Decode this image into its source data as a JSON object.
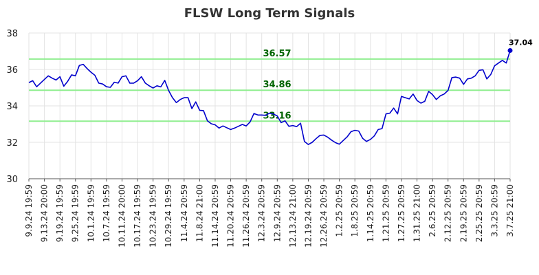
{
  "chart_data": {
    "type": "line",
    "title": "FLSW Long Term Signals",
    "ylim": [
      30,
      38
    ],
    "yticks": [
      30,
      32,
      34,
      36,
      38
    ],
    "grid": true,
    "line_color": "#0000cc",
    "level_color": "#90ee90",
    "level_label_color": "#006400",
    "x_tick_labels": [
      "9.9.24 19:59",
      "9.13.24 20:00",
      "9.19.24 19:59",
      "9.25.24 19:59",
      "10.1.24 19:59",
      "10.7.24 19:59",
      "10.11.24 20:00",
      "10.17.24 19:59",
      "10.23.24 19:59",
      "10.29.24 19:59",
      "11.4.24 20:59",
      "11.8.24 21:00",
      "11.14.24 20:59",
      "11.20.24 20:59",
      "11.26.24 20:59",
      "12.3.24 20:59",
      "12.9.24 20:59",
      "12.13.24 21:00",
      "12.19.24 20:59",
      "12.26.24 20:59",
      "1.2.25 20:59",
      "1.8.25 20:59",
      "1.14.25 20:59",
      "1.21.25 20:59",
      "1.27.25 20:59",
      "1.31.25 21:00",
      "2.6.25 20:59",
      "2.12.25 20:59",
      "2.19.25 20:59",
      "2.25.25 20:59",
      "3.3.25 20:59",
      "3.7.25 21:00"
    ],
    "levels": [
      {
        "value": 36.57,
        "label": "36.57"
      },
      {
        "value": 34.86,
        "label": "34.86"
      },
      {
        "value": 33.16,
        "label": "33.16"
      }
    ],
    "last_value_label": "37.04",
    "series": [
      {
        "values": [
          35.28,
          35.38,
          35.05,
          35.25,
          35.45,
          35.65,
          35.52,
          35.42,
          35.6,
          35.08,
          35.35,
          35.7,
          35.65,
          36.22,
          36.28,
          36.05,
          35.85,
          35.68,
          35.25,
          35.2,
          35.05,
          35.02,
          35.3,
          35.25,
          35.6,
          35.65,
          35.25,
          35.25,
          35.38,
          35.6,
          35.25,
          35.1,
          34.98,
          35.1,
          35.04,
          35.4,
          34.85,
          34.45,
          34.18,
          34.35,
          34.45,
          34.45,
          33.85,
          34.22,
          33.76,
          33.74,
          33.18,
          33.02,
          32.96,
          32.78,
          32.9,
          32.8,
          32.7,
          32.78,
          32.88,
          32.98,
          32.9,
          33.12,
          33.58,
          33.5,
          33.5,
          33.48,
          33.6,
          33.55,
          33.45,
          33.08,
          33.18,
          32.88,
          32.92,
          32.86,
          33.05,
          32.05,
          31.88,
          32.0,
          32.2,
          32.38,
          32.4,
          32.28,
          32.12,
          31.98,
          31.9,
          32.1,
          32.3,
          32.58,
          32.66,
          32.62,
          32.22,
          32.05,
          32.16,
          32.35,
          32.7,
          32.75,
          33.56,
          33.6,
          33.88,
          33.56,
          34.52,
          34.45,
          34.38,
          34.65,
          34.3,
          34.15,
          34.25,
          34.8,
          34.62,
          34.35,
          34.55,
          34.65,
          34.85,
          35.55,
          35.58,
          35.52,
          35.18,
          35.48,
          35.52,
          35.65,
          35.95,
          35.98,
          35.48,
          35.72,
          36.2,
          36.35,
          36.5,
          36.35,
          37.04
        ]
      }
    ]
  }
}
